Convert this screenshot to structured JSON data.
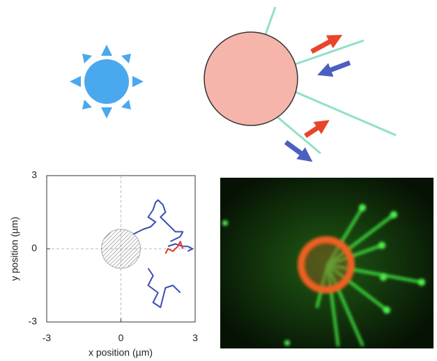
{
  "chart_data": {
    "type": "line",
    "xlabel": "x position (µm)",
    "ylabel": "y position (µm)",
    "xlim": [
      -3,
      3
    ],
    "ylim": [
      -3,
      3
    ],
    "xticks": [
      -3,
      0,
      3
    ],
    "yticks": [
      -3,
      0,
      3
    ],
    "series": [
      {
        "color": "#3a4fb0",
        "x": [
          0.5,
          0.9,
          1.2,
          1.4,
          1.1,
          1.3,
          1.4,
          1.5,
          1.7,
          1.8,
          1.6,
          1.9,
          2.2,
          2.5,
          2.4,
          2.0
        ],
        "values": [
          0.6,
          0.8,
          0.9,
          1.1,
          1.3,
          1.6,
          1.9,
          2.0,
          1.8,
          1.5,
          1.3,
          1.0,
          0.7,
          0.7,
          0.5,
          0.3
        ]
      },
      {
        "color": "#3a4fb0",
        "x": [
          1.9,
          2.2,
          2.5,
          2.7,
          2.9,
          2.7
        ],
        "values": [
          0.1,
          0.2,
          0.1,
          0.1,
          0.0,
          -0.1
        ]
      },
      {
        "color": "#e03a2a",
        "x": [
          1.8,
          1.9,
          2.1,
          2.3,
          2.4,
          2.5
        ],
        "values": [
          -0.2,
          0.0,
          -0.1,
          0.1,
          0.3,
          0.0
        ]
      },
      {
        "color": "#3a4fb0",
        "x": [
          1.1,
          1.3,
          1.1,
          1.5,
          1.3,
          1.6,
          1.8,
          2.1,
          2.4
        ],
        "values": [
          -0.8,
          -1.1,
          -1.5,
          -1.8,
          -2.2,
          -2.4,
          -1.6,
          -1.5,
          -1.8
        ]
      }
    ]
  }
}
